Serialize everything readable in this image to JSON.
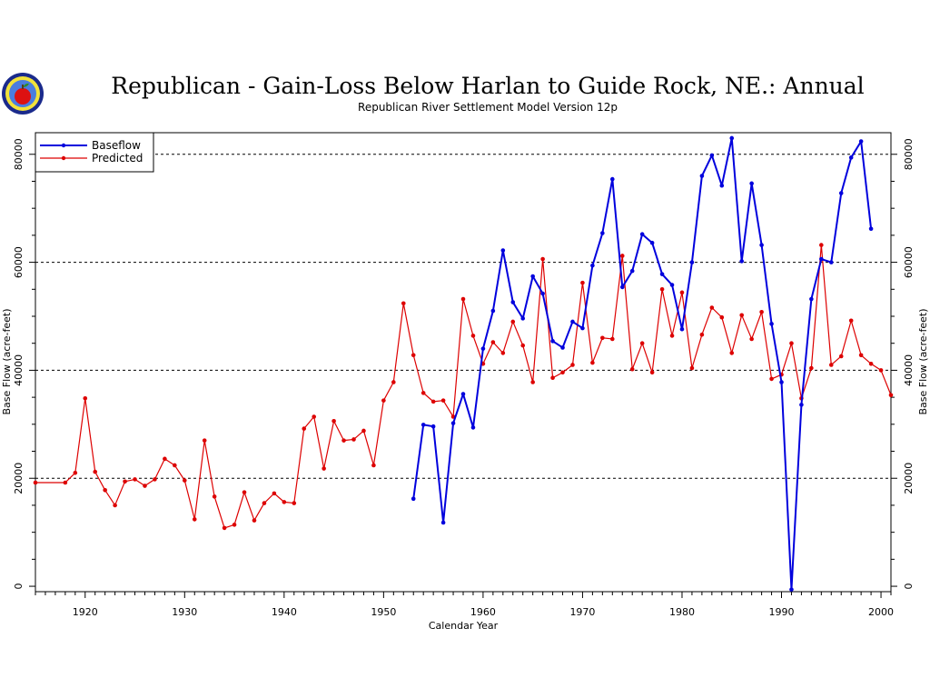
{
  "chart_data": {
    "type": "line",
    "title": "Republican - Gain-Loss Below Harlan to Guide Rock, NE.: Annual",
    "subtitle": "Republican River Settlement Model Version 12p",
    "xlabel": "Calendar Year",
    "ylabel": "Base Flow (acre-feet)",
    "xlim": [
      1915,
      2001
    ],
    "ylim": [
      -1000,
      84000
    ],
    "x_ticks": [
      1920,
      1930,
      1940,
      1950,
      1960,
      1970,
      1980,
      1990,
      2000
    ],
    "y_ticks": [
      0,
      20000,
      40000,
      60000,
      80000
    ],
    "y_tick_labels": [
      "0",
      "20000",
      "40000",
      "60000",
      "80000"
    ],
    "grid_y": [
      20000,
      40000,
      60000,
      80000
    ],
    "legend_position": "top-left",
    "series": [
      {
        "name": "Baseflow",
        "color": "#0000dd",
        "x": [
          1953,
          1954,
          1955,
          1956,
          1957,
          1958,
          1959,
          1960,
          1961,
          1962,
          1963,
          1964,
          1965,
          1966,
          1967,
          1968,
          1969,
          1970,
          1971,
          1972,
          1973,
          1974,
          1975,
          1976,
          1977,
          1978,
          1979,
          1980,
          1981,
          1982,
          1983,
          1984,
          1985,
          1986,
          1987,
          1988,
          1989,
          1990,
          1991,
          1992,
          1993,
          1994,
          1995,
          1996,
          1997,
          1998,
          1999
        ],
        "y": [
          16200,
          29900,
          29600,
          11800,
          30200,
          35600,
          29400,
          44000,
          51000,
          62200,
          52600,
          49600,
          57400,
          54200,
          45400,
          44200,
          49000,
          47800,
          59400,
          65400,
          75400,
          55400,
          58400,
          65200,
          63600,
          57800,
          55800,
          47600,
          60000,
          76000,
          79800,
          74200,
          83000,
          60200,
          74600,
          63200,
          48600,
          37800,
          -600,
          33600,
          53200,
          60600,
          60000,
          72800,
          79400,
          82400,
          66200
        ]
      },
      {
        "name": "Predicted",
        "color": "#dd0000",
        "x": [
          1915,
          1918,
          1919,
          1920,
          1921,
          1922,
          1923,
          1924,
          1925,
          1926,
          1927,
          1928,
          1929,
          1930,
          1931,
          1932,
          1933,
          1934,
          1935,
          1936,
          1937,
          1938,
          1939,
          1940,
          1941,
          1942,
          1943,
          1944,
          1945,
          1946,
          1947,
          1948,
          1949,
          1950,
          1951,
          1952,
          1953,
          1954,
          1955,
          1956,
          1957,
          1958,
          1959,
          1960,
          1961,
          1962,
          1963,
          1964,
          1965,
          1966,
          1967,
          1968,
          1969,
          1970,
          1971,
          1972,
          1973,
          1974,
          1975,
          1976,
          1977,
          1978,
          1979,
          1980,
          1981,
          1982,
          1983,
          1984,
          1985,
          1986,
          1987,
          1988,
          1989,
          1990,
          1991,
          1992,
          1993,
          1994,
          1995,
          1996,
          1997,
          1998,
          1999,
          2000,
          2001
        ],
        "y": [
          19200,
          19200,
          21000,
          34800,
          21200,
          17800,
          15000,
          19400,
          19800,
          18600,
          19800,
          23600,
          22400,
          19600,
          12400,
          27000,
          16600,
          10800,
          11400,
          17400,
          12200,
          15400,
          17200,
          15600,
          15400,
          29200,
          31400,
          21800,
          30600,
          27000,
          27200,
          28800,
          22400,
          34400,
          37800,
          52400,
          42800,
          35800,
          34200,
          34400,
          31400,
          53200,
          46400,
          41200,
          45200,
          43200,
          49000,
          44600,
          37800,
          60600,
          38600,
          39600,
          41000,
          56200,
          41400,
          46000,
          45800,
          61200,
          40200,
          45000,
          39600,
          55000,
          46400,
          54400,
          40400,
          46600,
          51600,
          49800,
          43200,
          50200,
          45800,
          50800,
          38400,
          39200,
          45000,
          34800,
          40400,
          63200,
          41000,
          42600,
          49200,
          42800,
          41200,
          40000,
          35400
        ]
      }
    ]
  }
}
